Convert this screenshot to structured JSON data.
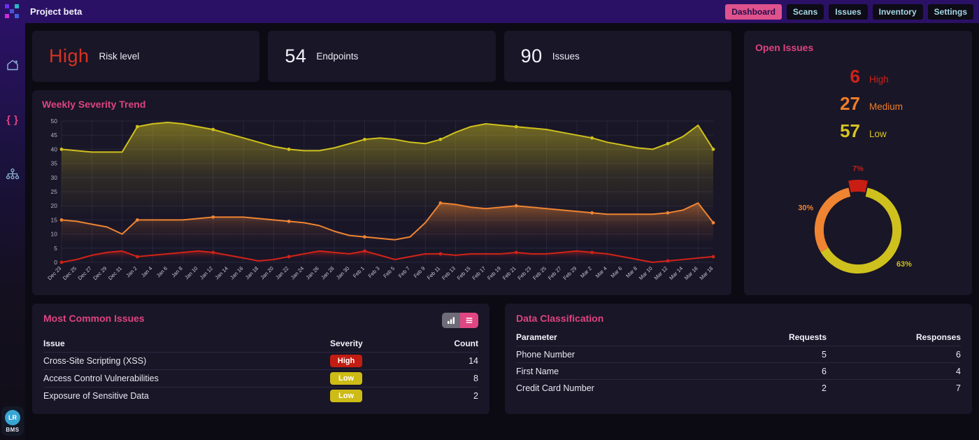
{
  "topbar": {
    "title": "Project beta",
    "nav": [
      {
        "label": "Dashboard",
        "active": true
      },
      {
        "label": "Scans",
        "active": false
      },
      {
        "label": "Issues",
        "active": false
      },
      {
        "label": "Inventory",
        "active": false
      },
      {
        "label": "Settings",
        "active": false
      }
    ]
  },
  "sidebar": {
    "icons": [
      "home",
      "braces",
      "network"
    ],
    "avatar_initials": "LR",
    "avatar_label": "BMS"
  },
  "stats": [
    {
      "value": "High",
      "label": "Risk level",
      "value_color": "#d63324"
    },
    {
      "value": "54",
      "label": "Endpoints",
      "value_color": "#f5f3fa"
    },
    {
      "value": "90",
      "label": "Issues",
      "value_color": "#f5f3fa"
    }
  ],
  "open_issues": {
    "title": "Open Issues",
    "items": [
      {
        "count": "6",
        "label": "High",
        "color": "#d02318"
      },
      {
        "count": "27",
        "label": "Medium",
        "color": "#ef7d28"
      },
      {
        "count": "57",
        "label": "Low",
        "color": "#d8c41f"
      }
    ]
  },
  "chart_data": [
    {
      "type": "line",
      "title": "Weekly Severity Trend",
      "ylim": [
        0,
        50
      ],
      "yticks": [
        0,
        5,
        10,
        15,
        20,
        25,
        30,
        35,
        40,
        45,
        50
      ],
      "grid": true,
      "legend": "none",
      "x": [
        "Dec 23",
        "Dec 25",
        "Dec 27",
        "Dec 29",
        "Dec 31",
        "Jan 2",
        "Jan 4",
        "Jan 6",
        "Jan 8",
        "Jan 10",
        "Jan 12",
        "Jan 14",
        "Jan 16",
        "Jan 18",
        "Jan 20",
        "Jan 22",
        "Jan 24",
        "Jan 26",
        "Jan 28",
        "Jan 30",
        "Feb 1",
        "Feb 3",
        "Feb 5",
        "Feb 7",
        "Feb 9",
        "Feb 11",
        "Feb 13",
        "Feb 15",
        "Feb 17",
        "Feb 19",
        "Feb 21",
        "Feb 23",
        "Feb 25",
        "Feb 27",
        "Feb 29",
        "Mar 2",
        "Mar 4",
        "Mar 6",
        "Mar 8",
        "Mar 10",
        "Mar 12",
        "Mar 14",
        "Mar 16",
        "Mar 18"
      ],
      "series": [
        {
          "name": "Low",
          "color": "#cfc11d",
          "values": [
            40,
            39.5,
            39,
            39,
            39,
            48,
            49,
            49.5,
            49,
            48,
            47,
            45.5,
            44,
            42.5,
            41,
            40,
            39.5,
            39.5,
            40.5,
            42,
            43.5,
            44,
            43.5,
            42.5,
            42,
            43.5,
            46,
            48,
            49,
            48.5,
            48,
            47.5,
            47,
            46,
            45,
            44,
            42.5,
            41.5,
            40.5,
            40,
            42,
            44.5,
            48.5,
            40
          ]
        },
        {
          "name": "Medium",
          "color": "#ef8432",
          "values": [
            15,
            14.5,
            13.5,
            12.5,
            10,
            15,
            15,
            15,
            15,
            15.5,
            16,
            16,
            16,
            15.5,
            15,
            14.5,
            14,
            13,
            11,
            9.5,
            9,
            8.5,
            8,
            9,
            14,
            21,
            20.5,
            19.5,
            19,
            19.5,
            20,
            19.5,
            19,
            18.5,
            18,
            17.5,
            17,
            17,
            17,
            17,
            17.5,
            18.5,
            21,
            14
          ]
        },
        {
          "name": "High",
          "color": "#d02318",
          "values": [
            0,
            1,
            2.5,
            3.5,
            4,
            2,
            2.5,
            3,
            3.5,
            4,
            3.5,
            2.5,
            1.5,
            0.5,
            1,
            2,
            3,
            4,
            3.5,
            3,
            4,
            2.5,
            1,
            2,
            3,
            3,
            2.5,
            3,
            3,
            3,
            3.5,
            3,
            3,
            3.5,
            4,
            3.5,
            3,
            2,
            1,
            0,
            0.5,
            1,
            1.5,
            2
          ]
        }
      ]
    },
    {
      "type": "pie",
      "donut": true,
      "slices": [
        {
          "label": "High",
          "pct": 7,
          "color": "#c81e14",
          "exploded": true
        },
        {
          "label": "Low",
          "pct": 63,
          "color": "#cfc11d",
          "exploded": false
        },
        {
          "label": "Medium",
          "pct": 30,
          "color": "#ef8432",
          "exploded": false
        }
      ]
    }
  ],
  "most_common_issues": {
    "title": "Most Common Issues",
    "headers": [
      "Issue",
      "Severity",
      "Count"
    ],
    "rows": [
      {
        "issue": "Cross-Site Scripting (XSS)",
        "severity": "High",
        "badge_color": "#c21d12",
        "count": "14"
      },
      {
        "issue": "Access Control Vulnerabilities",
        "severity": "Low",
        "badge_color": "#cdbb16",
        "count": "8"
      },
      {
        "issue": "Exposure of Sensitive Data",
        "severity": "Low",
        "badge_color": "#cdbb16",
        "count": "2"
      }
    ]
  },
  "data_classification": {
    "title": "Data Classification",
    "headers": [
      "Parameter",
      "Requests",
      "Responses"
    ],
    "rows": [
      {
        "parameter": "Phone Number",
        "requests": "5",
        "responses": "6"
      },
      {
        "parameter": "First Name",
        "requests": "6",
        "responses": "4"
      },
      {
        "parameter": "Credit Card Number",
        "requests": "2",
        "responses": "7"
      }
    ]
  }
}
